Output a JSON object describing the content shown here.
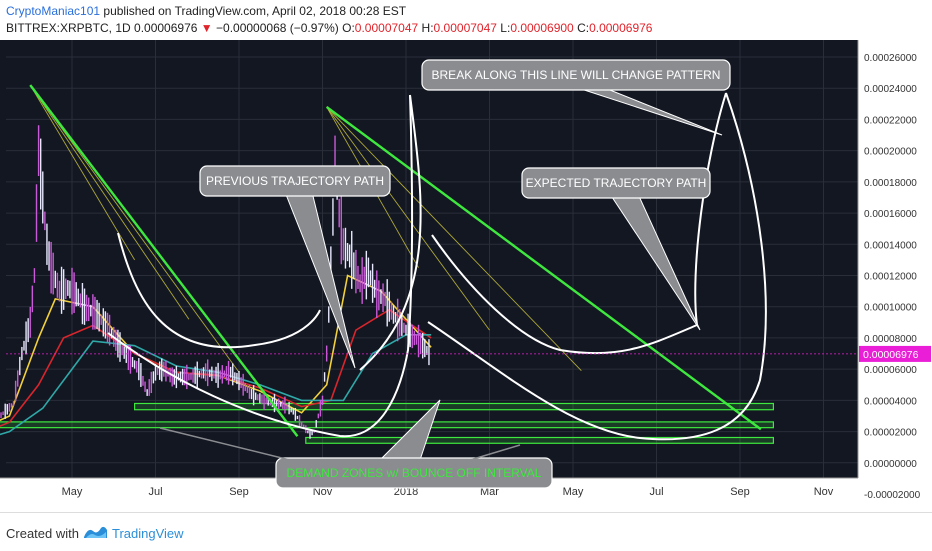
{
  "header": {
    "author": "CryptoManiac101",
    "published": "published on TradingView.com, April 02, 2018 00:28 EST",
    "symbol": "BITTREX:XRPBTC, 1D",
    "last": "0.00006976",
    "change": "−0.00000068 (−0.97%)",
    "o_label": "O:",
    "o_value": "0.00007047",
    "h_label": "H:",
    "h_value": "0.00007047",
    "l_label": "L:",
    "l_value": "0.00006900",
    "c_label": "C:",
    "c_value": "0.00006976"
  },
  "footer": {
    "created_with": "Created with",
    "brand": "TradingView"
  },
  "colors": {
    "background": "#131722",
    "grid": "#2a2e39",
    "green_line": "#3ee83e",
    "fan_line": "#c9c23a",
    "white_path": "#ffffff",
    "price_tag": "#e91ed6",
    "callout_fill": "#8a8c90",
    "zone_text": "#3ee83e"
  },
  "chart_data": {
    "type": "line",
    "title": "",
    "y_axis": {
      "min": -2e-05,
      "max": 0.00026,
      "ticks": [
        "0.00026000",
        "0.00024000",
        "0.00022000",
        "0.00020000",
        "0.00018000",
        "0.00016000",
        "0.00014000",
        "0.00012000",
        "0.00010000",
        "0.00008000",
        "0.00006000",
        "0.00004000",
        "0.00002000",
        "0.00000000",
        "-0.00002000"
      ],
      "tick_values": [
        0.00026,
        0.00024,
        0.00022,
        0.0002,
        0.00018,
        0.00016,
        0.00014,
        0.00012,
        0.0001,
        8e-05,
        6e-05,
        4e-05,
        2e-05,
        0,
        -2e-05
      ]
    },
    "x_axis": {
      "labels": [
        "May",
        "Jul",
        "Sep",
        "Nov",
        "2018",
        "Mar",
        "May",
        "Jul",
        "Sep",
        "Nov"
      ],
      "label_months": [
        4,
        6,
        8,
        10,
        12,
        14,
        16,
        18,
        20,
        22
      ]
    },
    "current_price": "0.00006976",
    "current_price_value": 6.976e-05,
    "grid": true,
    "price_series": {
      "name": "XRPBTC",
      "points": [
        [
          0,
          5.2e-06
        ],
        [
          0.5,
          6.5e-06
        ],
        [
          0.8,
          8e-06
        ],
        [
          1.0,
          1.3e-05
        ],
        [
          1.1,
          4e-05
        ],
        [
          1.2,
          2.6e-05
        ],
        [
          1.5,
          2.5e-05
        ],
        [
          1.8,
          2.4e-05
        ],
        [
          2.2,
          2.8e-05
        ],
        [
          2.6,
          3.8e-05
        ],
        [
          2.8,
          7e-05
        ],
        [
          3.0,
          9e-05
        ],
        [
          3.1,
          0.00012
        ],
        [
          3.2,
          0.0002
        ],
        [
          3.3,
          0.00017
        ],
        [
          3.4,
          0.00014
        ],
        [
          3.5,
          0.000125
        ],
        [
          3.7,
          0.00011
        ],
        [
          3.9,
          0.000112
        ],
        [
          4.1,
          0.000108
        ],
        [
          4.3,
          0.0001
        ],
        [
          4.6,
          9.5e-05
        ],
        [
          4.9,
          8.5e-05
        ],
        [
          5.2,
          7.2e-05
        ],
        [
          5.6,
          6e-05
        ],
        [
          5.8,
          4.5e-05
        ],
        [
          6.0,
          5.8e-05
        ],
        [
          6.2,
          6e-05
        ],
        [
          6.4,
          5.5e-05
        ],
        [
          6.8,
          5.5e-05
        ],
        [
          7.2,
          5.8e-05
        ],
        [
          7.5,
          5.6e-05
        ],
        [
          7.8,
          5.8e-05
        ],
        [
          8.1,
          5e-05
        ],
        [
          8.3,
          4.4e-05
        ],
        [
          8.6,
          4e-05
        ],
        [
          8.9,
          3.8e-05
        ],
        [
          9.1,
          3.7e-05
        ],
        [
          9.3,
          3.3e-05
        ],
        [
          9.5,
          2.5e-05
        ],
        [
          9.7,
          1.8e-05
        ],
        [
          9.8,
          2e-05
        ],
        [
          10.0,
          4e-05
        ],
        [
          10.1,
          7e-05
        ],
        [
          10.2,
          0.00012
        ],
        [
          10.3,
          0.000195
        ],
        [
          10.4,
          0.00016
        ],
        [
          10.5,
          0.00014
        ],
        [
          10.7,
          0.00013
        ],
        [
          10.9,
          0.000115
        ],
        [
          11.1,
          0.000122
        ],
        [
          11.3,
          0.000108
        ],
        [
          11.5,
          0.000105
        ],
        [
          11.7,
          9.5e-05
        ],
        [
          11.9,
          8.8e-05
        ],
        [
          12.1,
          8.2e-05
        ],
        [
          12.3,
          7.8e-05
        ],
        [
          12.5,
          7.2e-05
        ],
        [
          12.6,
          6.98e-05
        ]
      ]
    },
    "moving_averages": [
      {
        "points": [
          [
            0.5,
            7e-06
          ],
          [
            1.5,
            1.8e-05
          ],
          [
            2.5,
            3e-05
          ],
          [
            3.2,
            8e-05
          ],
          [
            3.6,
            0.000105
          ],
          [
            4.5,
            0.0001
          ],
          [
            5.5,
            7e-05
          ],
          [
            6.5,
            5.8e-05
          ],
          [
            7.5,
            5.6e-05
          ],
          [
            8.5,
            4.6e-05
          ],
          [
            9.5,
            3.2e-05
          ],
          [
            10.1,
            5e-05
          ],
          [
            10.6,
            0.00012
          ],
          [
            11.4,
            0.00011
          ],
          [
            12.6,
            7.4e-05
          ]
        ]
      },
      {
        "points": [
          [
            0.5,
            7e-06
          ],
          [
            1.5,
            1.5e-05
          ],
          [
            2.5,
            2.6e-05
          ],
          [
            3.2,
            5e-05
          ],
          [
            3.8,
            8e-05
          ],
          [
            4.5,
            8.8e-05
          ],
          [
            5.5,
            7e-05
          ],
          [
            6.5,
            5.8e-05
          ],
          [
            7.5,
            5.6e-05
          ],
          [
            8.5,
            4.8e-05
          ],
          [
            9.5,
            3.6e-05
          ],
          [
            10.2,
            4e-05
          ],
          [
            10.8,
            8.5e-05
          ],
          [
            11.6,
            9.8e-05
          ],
          [
            12.6,
            8e-05
          ]
        ]
      },
      {
        "points": [
          [
            0.5,
            6e-06
          ],
          [
            1.5,
            1.2e-05
          ],
          [
            2.5,
            2e-05
          ],
          [
            3.3,
            3.5e-05
          ],
          [
            4.0,
            6e-05
          ],
          [
            4.5,
            7.8e-05
          ],
          [
            5.5,
            7.5e-05
          ],
          [
            6.5,
            6.2e-05
          ],
          [
            7.5,
            5.8e-05
          ],
          [
            8.5,
            5e-05
          ],
          [
            9.5,
            4e-05
          ],
          [
            10.5,
            4e-05
          ],
          [
            11.2,
            7e-05
          ],
          [
            12.0,
            8.2e-05
          ],
          [
            12.6,
            8.2e-05
          ]
        ]
      }
    ],
    "trend_lines": [
      {
        "from": [
          3.0,
          0.000242
        ],
        "to": [
          9.4,
          1.7e-05
        ]
      },
      {
        "from": [
          10.1,
          0.000228
        ],
        "to": [
          20.5,
          2.15e-05
        ]
      }
    ],
    "fan_lines": [
      {
        "from": [
          3.0,
          0.000242
        ],
        "to": [
          5.5,
          0.00013
        ]
      },
      {
        "from": [
          3.0,
          0.000242
        ],
        "to": [
          6.8,
          9.2e-05
        ]
      },
      {
        "from": [
          3.0,
          0.000242
        ],
        "to": [
          8.0,
          5.8e-05
        ]
      },
      {
        "from": [
          10.1,
          0.000228
        ],
        "to": [
          12.3,
          0.000125
        ]
      },
      {
        "from": [
          10.1,
          0.000228
        ],
        "to": [
          14.0,
          8.5e-05
        ]
      },
      {
        "from": [
          10.1,
          0.000228
        ],
        "to": [
          16.2,
          5.9e-05
        ]
      }
    ],
    "zones": [
      {
        "x_from": 5.5,
        "x_to": 20.8,
        "y_from": 3.4e-05,
        "y_to": 3.8e-05
      },
      {
        "x_from": 0.7,
        "x_to": 20.8,
        "y_from": 2.25e-05,
        "y_to": 2.62e-05
      },
      {
        "x_from": 9.6,
        "x_to": 20.8,
        "y_from": 1.25e-05,
        "y_to": 1.62e-05
      }
    ],
    "annotations": [
      {
        "text": "PREVIOUS TRAJECTORY PATH"
      },
      {
        "text": "BREAK ALONG THIS LINE WILL CHANGE PATTERN"
      },
      {
        "text": "EXPECTED TRAJECTORY PATH"
      },
      {
        "text": "DEMAND ZONES w/ BOUNCE OFF INTERVAL"
      }
    ]
  }
}
